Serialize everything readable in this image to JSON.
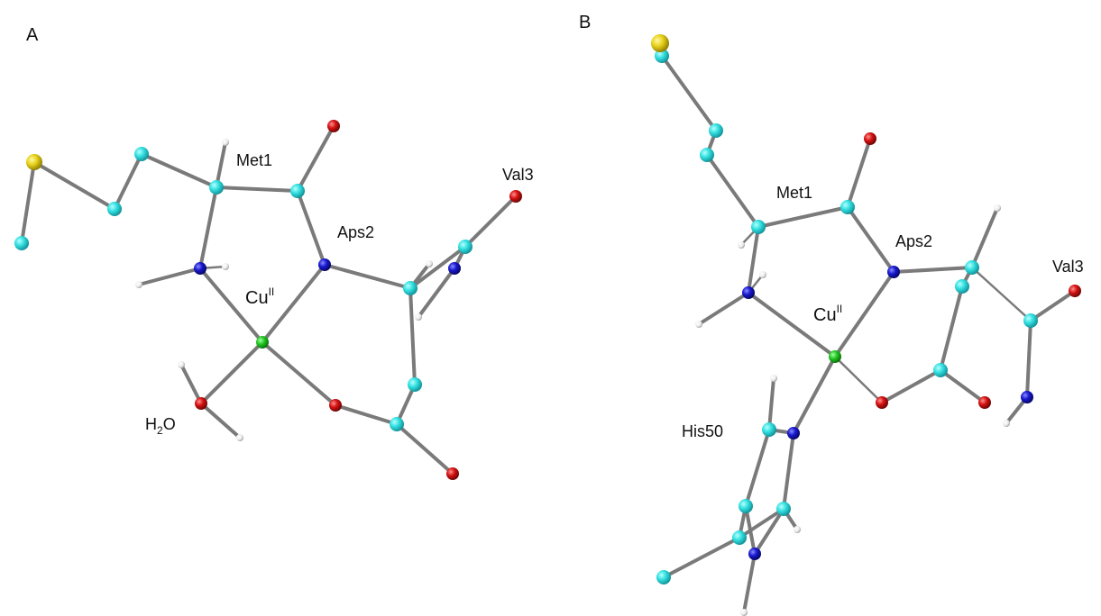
{
  "colors": {
    "carbon": "#29d6d6",
    "nitrogen": "#1414c8",
    "oxygen": "#d01010",
    "hydrogen": "#f2f2f2",
    "sulfur": "#e6d21e",
    "copper": "#22c322",
    "bond": "#7a7a7a"
  },
  "panels": [
    {
      "id": "A",
      "panel_label": "A",
      "labels": {
        "met": "Met1",
        "asp": "Aps2",
        "val": "Val3",
        "cu_main": "Cu",
        "cu_sup": "II",
        "water_h": "H",
        "water_sub": "2",
        "water_o": "O"
      }
    },
    {
      "id": "B",
      "panel_label": "B",
      "labels": {
        "met": "Met1",
        "asp": "Aps2",
        "val": "Val3",
        "cu_main": "Cu",
        "cu_sup": "II",
        "his": "His50"
      }
    }
  ]
}
